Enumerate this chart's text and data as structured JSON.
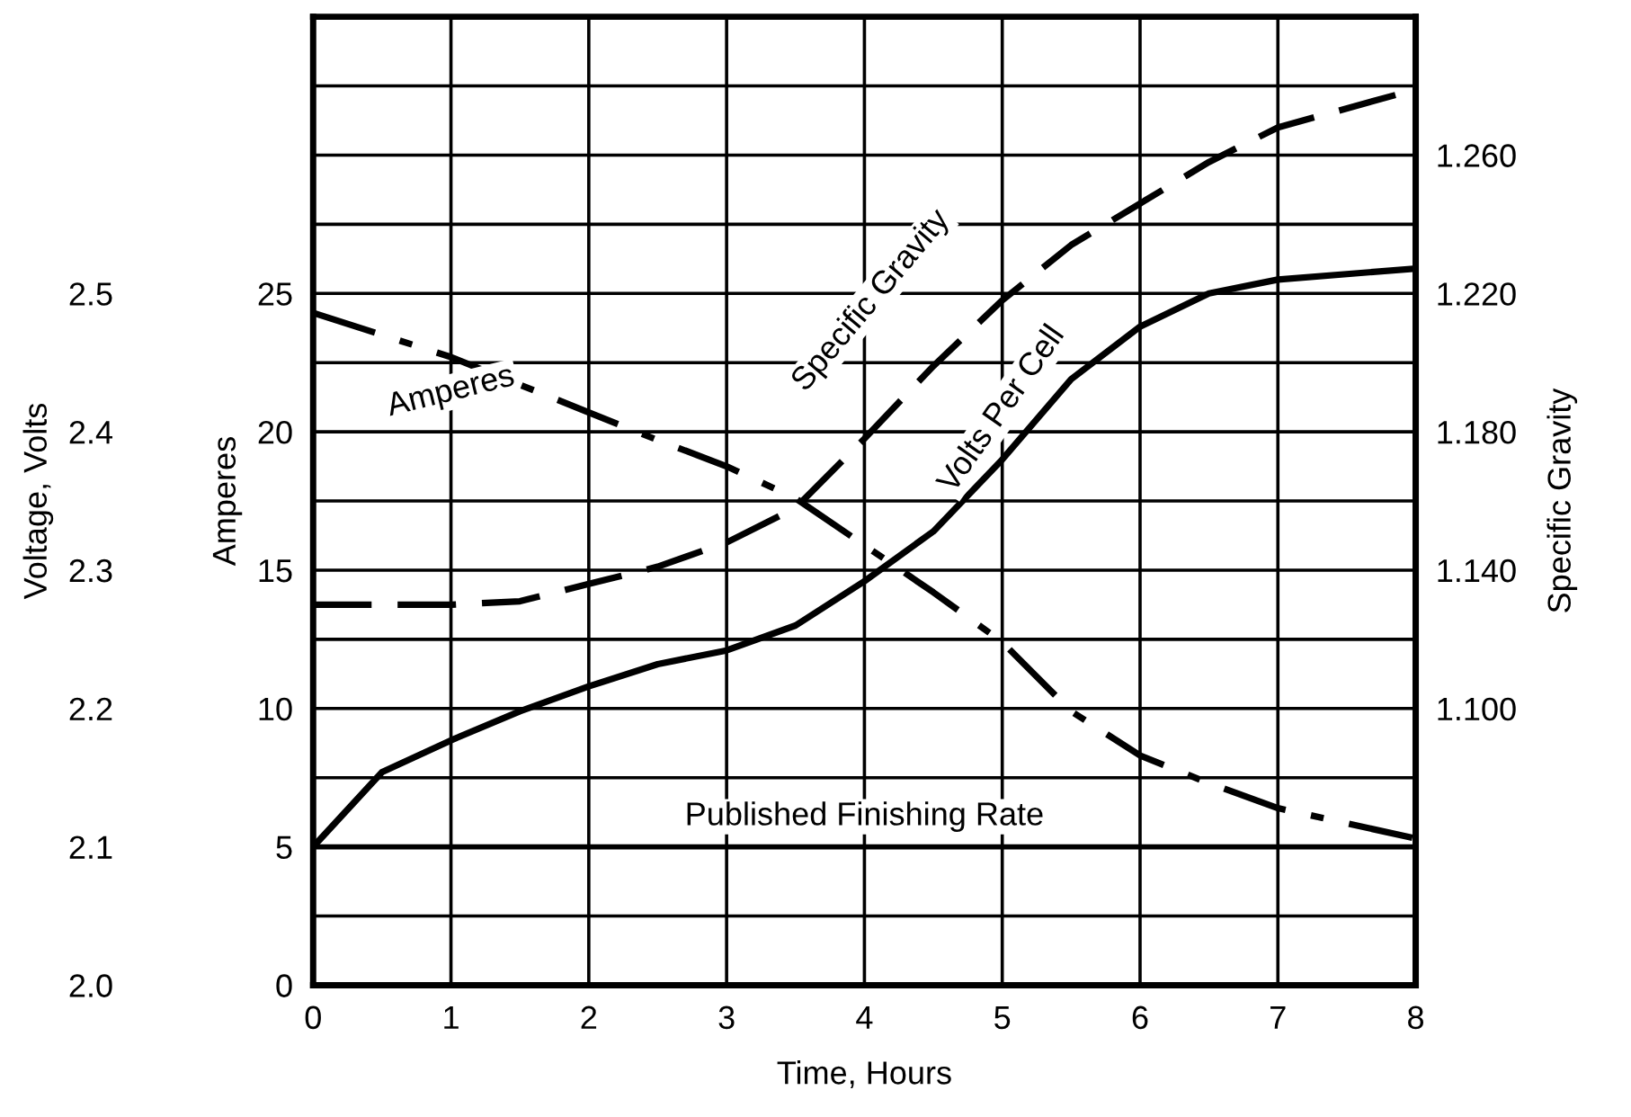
{
  "chart_data": {
    "type": "line",
    "xlabel": "Time, Hours",
    "ylabel": "Amperes",
    "y2label": "Specific Gravity",
    "y3label": "Voltage, Volts",
    "x": [
      0,
      0.5,
      1,
      1.5,
      2,
      2.5,
      3,
      3.5,
      4,
      4.5,
      5,
      5.5,
      6,
      6.5,
      7,
      8
    ],
    "xlim": [
      0,
      8
    ],
    "xticks": [
      0,
      1,
      2,
      3,
      4,
      5,
      6,
      7,
      8
    ],
    "ylim": [
      0,
      35
    ],
    "yticks": [
      0,
      {
        "value": 2.5,
        "label": null
      },
      5,
      {
        "value": 7.5,
        "label": null
      },
      10,
      {
        "value": 12.5,
        "label": null
      },
      15,
      {
        "value": 17.5,
        "label": null
      },
      20,
      {
        "value": 22.5,
        "label": null
      },
      25,
      {
        "value": 27.5,
        "label": null
      },
      {
        "value": 30,
        "label": null
      },
      {
        "value": 32.5,
        "label": null
      },
      {
        "value": 35,
        "label": null
      }
    ],
    "y2lim": [
      1.02,
      1.3
    ],
    "y2ticks": [
      {
        "value": 1.1,
        "label": "1.100"
      },
      {
        "value": 1.14,
        "label": "1.140"
      },
      {
        "value": 1.18,
        "label": "1.180"
      },
      {
        "value": 1.22,
        "label": "1.220"
      },
      {
        "value": 1.26,
        "label": "1.260"
      }
    ],
    "y3lim": [
      2.0,
      2.7
    ],
    "y3ticks": [
      {
        "value": 2.0,
        "label": "2.0"
      },
      2.1,
      2.2,
      2.3,
      2.4,
      2.5
    ],
    "grid": true,
    "legend": false,
    "marker": "none",
    "series": [
      {
        "name": "Amperes",
        "color": "#000000",
        "line_style": "dashdot",
        "values": [
          24.3,
          23.5,
          22.7,
          21.7,
          20.7,
          19.7,
          18.75,
          17.6,
          15.9,
          14.2,
          12.4,
          9.9,
          8.3,
          7.3,
          6.4,
          5.3
        ]
      },
      {
        "name": "Specific Gravity",
        "color": "#000000",
        "line_style": "dashed",
        "axis": "y2",
        "values": [
          1.13,
          1.13,
          1.13,
          1.131,
          1.136,
          1.141,
          1.148,
          1.158,
          1.178,
          1.199,
          1.218,
          1.234,
          1.246,
          1.258,
          1.268,
          1.279
        ]
      },
      {
        "name": "Volts Per Cell",
        "color": "#000000",
        "line_style": "solid",
        "axis": "y3",
        "values": [
          2.1,
          2.154,
          2.177,
          2.198,
          2.216,
          2.232,
          2.242,
          2.26,
          2.292,
          2.328,
          2.38,
          2.438,
          2.476,
          2.5,
          2.51,
          2.518
        ]
      }
    ],
    "ref_lines": [
      {
        "axis": "y",
        "value": 5,
        "label": "Published Finishing Rate",
        "color": "#000000",
        "line_style": "solid"
      }
    ]
  }
}
